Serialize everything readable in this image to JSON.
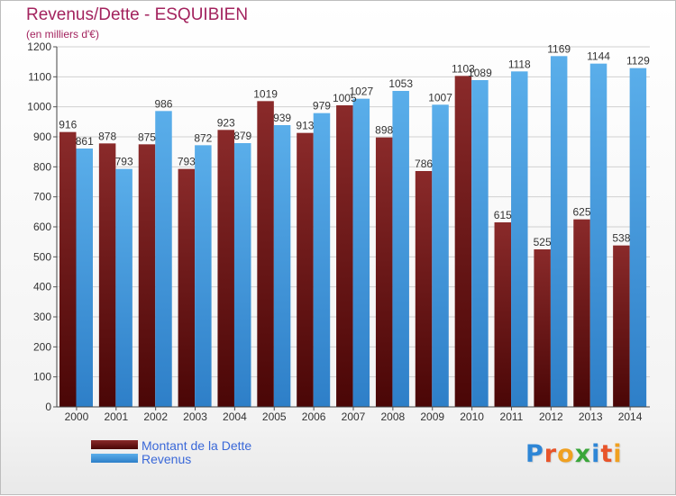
{
  "header": {
    "title": "Revenus/Dette - ESQUIBIEN",
    "subtitle": "(en milliers d'€)"
  },
  "colors": {
    "dette": "#7a1a1a",
    "revenus": "#4a9fe0",
    "title": "#a3235e",
    "legend_text": "#3a68d8"
  },
  "chart_data": {
    "type": "bar",
    "title": "Revenus/Dette - ESQUIBIEN",
    "subtitle": "(en milliers d'€)",
    "categories": [
      "2000",
      "2001",
      "2002",
      "2003",
      "2004",
      "2005",
      "2006",
      "2007",
      "2008",
      "2009",
      "2010",
      "2011",
      "2012",
      "2013",
      "2014"
    ],
    "series": [
      {
        "name": "Montant de la Dette",
        "color": "#7a1a1a",
        "values": [
          916,
          878,
          875,
          793,
          923,
          1019,
          913,
          1005,
          898,
          786,
          1103,
          615,
          525,
          625,
          538
        ]
      },
      {
        "name": "Revenus",
        "color": "#4a9fe0",
        "values": [
          861,
          793,
          986,
          872,
          879,
          939,
          979,
          1027,
          1053,
          1007,
          1089,
          1118,
          1169,
          1144,
          1129
        ]
      }
    ],
    "ylim": [
      0,
      1200
    ],
    "yticks": [
      0,
      100,
      200,
      300,
      400,
      500,
      600,
      700,
      800,
      900,
      1000,
      1100,
      1200
    ],
    "grid": true,
    "legend_position": "bottom-left"
  },
  "legend": {
    "items": [
      {
        "label": "Montant de la Dette"
      },
      {
        "label": "Revenus"
      }
    ]
  },
  "logo": {
    "letters": [
      "P",
      "r",
      "o",
      "x",
      "i",
      "t",
      "i"
    ],
    "colors": [
      "#2e86d6",
      "#e8542a",
      "#f0a020",
      "#3aa63a",
      "#2e86d6",
      "#e8542a",
      "#f0a020"
    ]
  }
}
